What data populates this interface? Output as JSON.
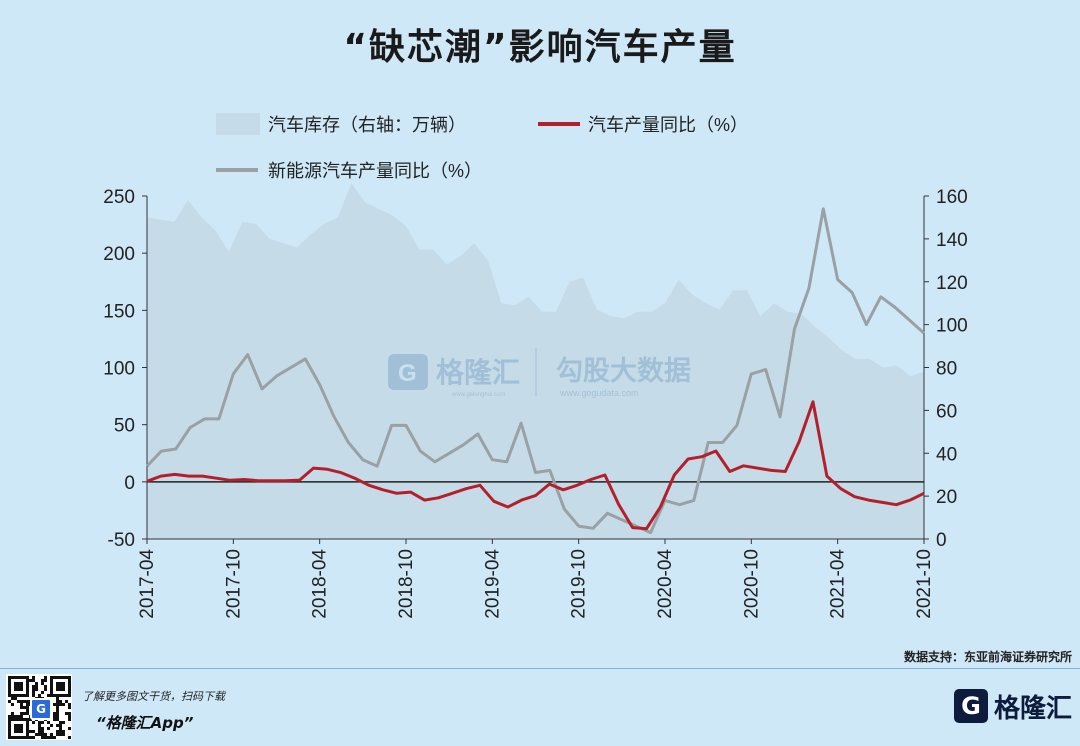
{
  "title": "“缺芯潮”影响汽车产量",
  "source": "数据支持：东亚前海证券研究所",
  "footer": {
    "tip": "了解更多图文干货，扫码下载",
    "app": "“格隆汇App”",
    "brand": "格隆汇",
    "brand_letter": "G"
  },
  "watermark": {
    "left_name": "格隆汇",
    "left_url": "www.gelonghui.com",
    "right_name": "勾股大数据",
    "right_url": "www.gogudata.com"
  },
  "colors": {
    "background": "#cfe8f7",
    "inventory_area": "#c5dce8",
    "production_line": "#b3202c",
    "nev_line": "#9aa0a3"
  },
  "chart_data": {
    "type": "line",
    "x_tick_labels": [
      "2017-04",
      "2017-10",
      "2018-04",
      "2018-10",
      "2019-04",
      "2019-10",
      "2020-04",
      "2020-10",
      "2021-04",
      "2021-10"
    ],
    "left_axis": {
      "range": [
        -50,
        250
      ],
      "ticks": [
        250,
        200,
        150,
        100,
        50,
        0,
        -50
      ]
    },
    "right_axis": {
      "range": [
        0,
        160
      ],
      "ticks": [
        160,
        140,
        120,
        100,
        80,
        60,
        40,
        20,
        0
      ]
    },
    "legend": {
      "inventory": "汽车库存（右轴：万辆）",
      "production": "汽车产量同比（%）",
      "nev": "新能源汽车产量同比（%）"
    },
    "series": [
      {
        "name": "汽车库存（右轴：万辆）",
        "type": "area",
        "axis": "right",
        "values": [
          150,
          149,
          148,
          158,
          150,
          144,
          134,
          148,
          147,
          140,
          138,
          136,
          142,
          147,
          150,
          166,
          157,
          154,
          151,
          146,
          135,
          135,
          128,
          132,
          138,
          130,
          110,
          109,
          113,
          106,
          106,
          120,
          122,
          107,
          104,
          103,
          106,
          106,
          110,
          121,
          114,
          110,
          107,
          116,
          116,
          104,
          110,
          106,
          105,
          99,
          94,
          88,
          84,
          84,
          80,
          81,
          76,
          78
        ]
      },
      {
        "name": "汽车产量同比（%）",
        "type": "line",
        "axis": "left",
        "values": [
          0.5,
          5,
          6.5,
          5,
          5,
          3.2,
          1.3,
          2,
          1,
          1,
          1,
          1.5,
          12,
          11,
          8,
          3,
          -3,
          -7,
          -10,
          -9,
          -16,
          -14,
          -10,
          -6,
          -3,
          -17,
          -22,
          -16,
          -12,
          -2,
          -7,
          -3,
          2,
          6,
          -20,
          -40,
          -41,
          -22,
          6,
          20,
          22,
          27,
          9,
          14,
          12,
          10,
          9,
          35,
          70,
          5,
          -6,
          -13,
          -16,
          -18,
          -20,
          -16,
          -10
        ]
      },
      {
        "name": "新能源汽车产量同比（%）",
        "type": "line",
        "axis": "right",
        "values": [
          34,
          41,
          42,
          52,
          56,
          56,
          77,
          86,
          70,
          76,
          80,
          84,
          72,
          57,
          45,
          37,
          34,
          53,
          53,
          41,
          36,
          40,
          44,
          49,
          37,
          36,
          54,
          31,
          32,
          14,
          6,
          5,
          12,
          9,
          6,
          3,
          18,
          16,
          18,
          45,
          45,
          53,
          77,
          79,
          57,
          98,
          117,
          154,
          121,
          115,
          100,
          113,
          108,
          102,
          96
        ]
      }
    ]
  }
}
